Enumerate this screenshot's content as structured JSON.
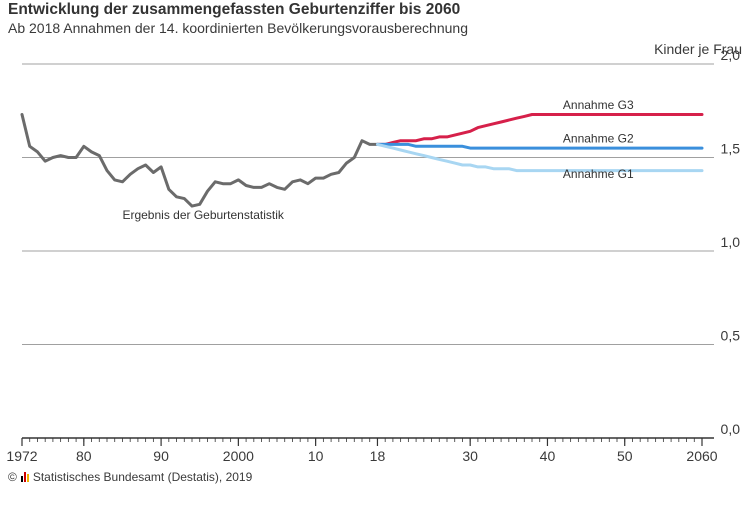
{
  "title": "Entwicklung der zusammengefassten Geburtenziffer bis 2060",
  "subtitle": "Ab 2018 Annahmen der 14. koordinierten Bevölkerungsvorausberechnung",
  "unit_label": "Kinder je Frau",
  "source": "Statistisches Bundesamt (Destatis), 2019",
  "copyright_symbol": "©",
  "colors": {
    "historical": "#6b6b6b",
    "g3": "#d6204a",
    "g2": "#3a8fdc",
    "g1": "#a8d6f2",
    "grid": "#a0a0a0",
    "axis": "#333333"
  },
  "chart_data": {
    "type": "line",
    "title": "Entwicklung der zusammengefassten Geburtenziffer bis 2060",
    "subtitle": "Ab 2018 Annahmen der 14. koordinierten Bevölkerungsvorausberechnung",
    "xlabel": "",
    "ylabel": "Kinder je Frau",
    "xlim": [
      1972,
      2060
    ],
    "ylim": [
      0.0,
      2.0
    ],
    "y_ticks": [
      {
        "value": 0.0,
        "label": "0,0"
      },
      {
        "value": 0.5,
        "label": "0,5"
      },
      {
        "value": 1.0,
        "label": "1,0"
      },
      {
        "value": 1.5,
        "label": "1,5"
      },
      {
        "value": 2.0,
        "label": "2,0"
      }
    ],
    "x_ticks": [
      {
        "value": 1972,
        "label": "1972"
      },
      {
        "value": 1980,
        "label": "80"
      },
      {
        "value": 1990,
        "label": "90"
      },
      {
        "value": 2000,
        "label": "2000"
      },
      {
        "value": 2010,
        "label": "10"
      },
      {
        "value": 2018,
        "label": "18"
      },
      {
        "value": 2030,
        "label": "30"
      },
      {
        "value": 2040,
        "label": "40"
      },
      {
        "value": 2050,
        "label": "50"
      },
      {
        "value": 2060,
        "label": "2060"
      }
    ],
    "grid": true,
    "series": [
      {
        "name": "Ergebnis der Geburtenstatistik",
        "color": "#6b6b6b",
        "x": [
          1972,
          1973,
          1974,
          1975,
          1976,
          1977,
          1978,
          1979,
          1980,
          1981,
          1982,
          1983,
          1984,
          1985,
          1986,
          1987,
          1988,
          1989,
          1990,
          1991,
          1992,
          1993,
          1994,
          1995,
          1996,
          1997,
          1998,
          1999,
          2000,
          2001,
          2002,
          2003,
          2004,
          2005,
          2006,
          2007,
          2008,
          2009,
          2010,
          2011,
          2012,
          2013,
          2014,
          2015,
          2016,
          2017,
          2018
        ],
        "y": [
          1.73,
          1.56,
          1.53,
          1.48,
          1.5,
          1.51,
          1.5,
          1.5,
          1.56,
          1.53,
          1.51,
          1.43,
          1.38,
          1.37,
          1.41,
          1.44,
          1.46,
          1.42,
          1.45,
          1.33,
          1.29,
          1.28,
          1.24,
          1.25,
          1.32,
          1.37,
          1.36,
          1.36,
          1.38,
          1.35,
          1.34,
          1.34,
          1.36,
          1.34,
          1.33,
          1.37,
          1.38,
          1.36,
          1.39,
          1.39,
          1.41,
          1.42,
          1.47,
          1.5,
          1.59,
          1.57,
          1.57
        ]
      },
      {
        "name": "Annahme G3",
        "color": "#d6204a",
        "x": [
          2018,
          2019,
          2020,
          2021,
          2022,
          2023,
          2024,
          2025,
          2026,
          2027,
          2028,
          2029,
          2030,
          2031,
          2032,
          2033,
          2034,
          2035,
          2036,
          2037,
          2038,
          2039,
          2040,
          2050,
          2060
        ],
        "y": [
          1.57,
          1.57,
          1.58,
          1.59,
          1.59,
          1.59,
          1.6,
          1.6,
          1.61,
          1.61,
          1.62,
          1.63,
          1.64,
          1.66,
          1.67,
          1.68,
          1.69,
          1.7,
          1.71,
          1.72,
          1.73,
          1.73,
          1.73,
          1.73,
          1.73
        ]
      },
      {
        "name": "Annahme G2",
        "color": "#3a8fdc",
        "x": [
          2018,
          2019,
          2020,
          2021,
          2022,
          2023,
          2024,
          2025,
          2026,
          2027,
          2028,
          2029,
          2030,
          2040,
          2050,
          2060
        ],
        "y": [
          1.57,
          1.57,
          1.57,
          1.57,
          1.57,
          1.56,
          1.56,
          1.56,
          1.56,
          1.56,
          1.56,
          1.56,
          1.55,
          1.55,
          1.55,
          1.55
        ]
      },
      {
        "name": "Annahme G1",
        "color": "#a8d6f2",
        "x": [
          2018,
          2019,
          2020,
          2021,
          2022,
          2023,
          2024,
          2025,
          2026,
          2027,
          2028,
          2029,
          2030,
          2031,
          2032,
          2033,
          2034,
          2035,
          2036,
          2037,
          2038,
          2040,
          2050,
          2060
        ],
        "y": [
          1.57,
          1.56,
          1.55,
          1.54,
          1.53,
          1.52,
          1.51,
          1.5,
          1.49,
          1.48,
          1.47,
          1.46,
          1.46,
          1.45,
          1.45,
          1.44,
          1.44,
          1.44,
          1.43,
          1.43,
          1.43,
          1.43,
          1.43,
          1.43
        ]
      }
    ],
    "annotations": [
      {
        "text": "Annahme G3",
        "series": "Annahme G3",
        "x": 2042,
        "y": 1.76
      },
      {
        "text": "Annahme G2",
        "series": "Annahme G2",
        "x": 2042,
        "y": 1.58
      },
      {
        "text": "Annahme G1",
        "series": "Annahme G1",
        "x": 2042,
        "y": 1.39
      },
      {
        "text": "Ergebnis der Geburtenstatistik",
        "series": "Ergebnis der Geburtenstatistik",
        "x": 1985,
        "y": 1.17
      }
    ]
  }
}
